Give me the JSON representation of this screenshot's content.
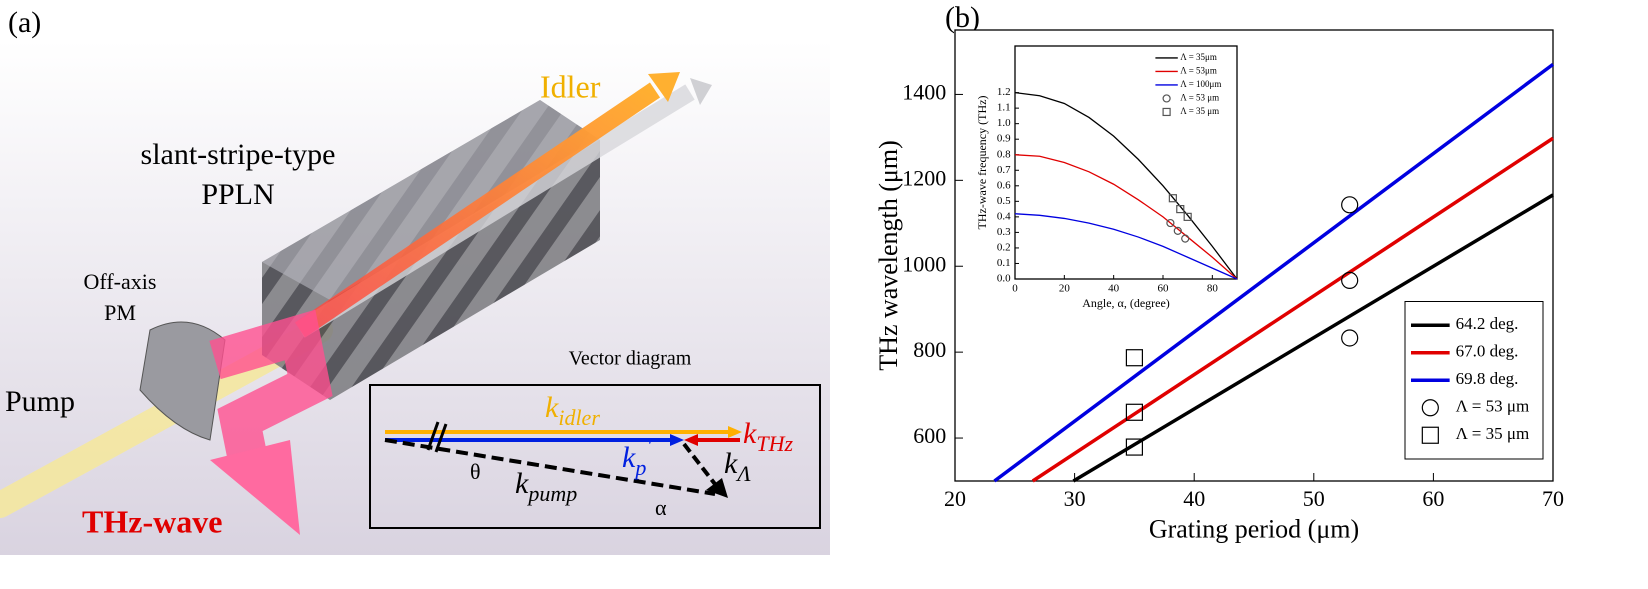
{
  "panel_a": {
    "label": "(a)",
    "idler": "Idler",
    "crystal": [
      "slant-stripe-type",
      "PPLN"
    ],
    "mirror": [
      "Off-axis",
      "PM"
    ],
    "pump": "Pump",
    "thz": "THz-wave",
    "vector_diagram": {
      "title": "Vector diagram",
      "k_idler": {
        "k": "k",
        "sub": "idler"
      },
      "k_thz": {
        "k": "k",
        "sub": "THz"
      },
      "k_p": {
        "k": "k",
        "sub": "p",
        "prime": "'"
      },
      "k_lambda": {
        "k": "k",
        "sub": "Λ"
      },
      "k_pump": {
        "k": "k",
        "sub": "pump"
      },
      "theta": "θ",
      "alpha": "α"
    }
  },
  "panel_b": {
    "label": "(b)"
  },
  "chart_data": [
    {
      "type": "line",
      "xlabel": "Grating period (μm)",
      "ylabel": "THz wavelength (μm)",
      "xlim": [
        20,
        70
      ],
      "xticks": [
        20,
        30,
        40,
        50,
        60,
        70
      ],
      "ylim": [
        500,
        1550
      ],
      "yticks": [
        600,
        800,
        1000,
        1200,
        1400
      ],
      "legend": "lower right",
      "series": [
        {
          "name": "64.2 deg.",
          "color": "#000000",
          "mode": "lines",
          "x": [
            29.9,
            70
          ],
          "values": [
            500,
            1166
          ]
        },
        {
          "name": "67.0 deg.",
          "color": "#e00000",
          "mode": "lines",
          "x": [
            26.5,
            70
          ],
          "values": [
            500,
            1298
          ]
        },
        {
          "name": "69.8 deg.",
          "color": "#0000e0",
          "mode": "lines",
          "x": [
            23.3,
            70
          ],
          "values": [
            500,
            1470
          ]
        },
        {
          "name": "Λ = 53 μm",
          "color": "#000000",
          "mode": "markers",
          "marker": "circle",
          "x": [
            53,
            53,
            53
          ],
          "values": [
            1143,
            967,
            833
          ]
        },
        {
          "name": "Λ = 35 μm",
          "color": "#000000",
          "mode": "markers",
          "marker": "square",
          "x": [
            35,
            35,
            35
          ],
          "values": [
            787,
            660,
            579
          ]
        }
      ]
    },
    {
      "type": "line",
      "xlabel": "Angle, α, (degree)",
      "ylabel": "THz-wave frequency (THz)",
      "xlim": [
        0,
        90
      ],
      "xticks": [
        0,
        20,
        40,
        60,
        80
      ],
      "ylim": [
        0,
        1.5
      ],
      "yticks": [
        {
          "value": 0,
          "label": "0.0"
        },
        0.1,
        0.2,
        0.3,
        0.4,
        0.5,
        0.6,
        0.7,
        0.8,
        0.9,
        {
          "value": 1,
          "label": "1.0"
        },
        1.1,
        1.2
      ],
      "legend": "upper right",
      "series": [
        {
          "name": "Λ = 35μm",
          "color": "#000000",
          "mode": "lines",
          "x": [
            0,
            10,
            20,
            30,
            40,
            50,
            60,
            70,
            80,
            90
          ],
          "values": [
            1.2,
            1.18,
            1.13,
            1.04,
            0.92,
            0.77,
            0.6,
            0.41,
            0.21,
            0
          ]
        },
        {
          "name": "Λ = 53μm",
          "color": "#e00000",
          "mode": "lines",
          "x": [
            0,
            10,
            20,
            30,
            40,
            50,
            60,
            70,
            80,
            90
          ],
          "values": [
            0.8,
            0.79,
            0.75,
            0.69,
            0.61,
            0.51,
            0.4,
            0.27,
            0.14,
            0
          ]
        },
        {
          "name": "Λ = 100μm",
          "color": "#0000e0",
          "mode": "lines",
          "x": [
            0,
            10,
            20,
            30,
            40,
            50,
            60,
            70,
            80,
            90
          ],
          "values": [
            0.42,
            0.41,
            0.39,
            0.36,
            0.32,
            0.27,
            0.21,
            0.14,
            0.07,
            0
          ]
        },
        {
          "name": "Λ = 53 μm",
          "color": "#555555",
          "mode": "markers",
          "marker": "circle",
          "x": [
            63,
            66,
            69
          ],
          "values": [
            0.36,
            0.31,
            0.26
          ]
        },
        {
          "name": "Λ = 35 μm",
          "color": "#555555",
          "mode": "markers",
          "marker": "square",
          "x": [
            64,
            67,
            70
          ],
          "values": [
            0.52,
            0.45,
            0.4
          ]
        }
      ]
    }
  ]
}
